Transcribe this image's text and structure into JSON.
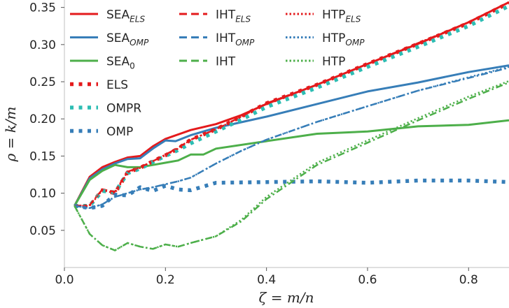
{
  "chart_data": {
    "type": "line",
    "xlabel": "ζ = m/n",
    "ylabel": "ρ = k/m",
    "xlim": [
      0.0,
      0.88
    ],
    "ylim": [
      0.0,
      0.36
    ],
    "x_ticks": [
      0.0,
      0.2,
      0.4,
      0.6,
      0.8
    ],
    "x_tick_labels": [
      "0.0",
      "0.2",
      "0.4",
      "0.6",
      "0.8"
    ],
    "y_ticks": [
      0.05,
      0.1,
      0.15,
      0.2,
      0.25,
      0.3,
      0.35
    ],
    "y_tick_labels": [
      "0.05",
      "0.10",
      "0.15",
      "0.20",
      "0.25",
      "0.30",
      "0.35"
    ],
    "grid": false,
    "legend_position": "top-left",
    "series": [
      {
        "name": "SEA",
        "sub": "ELS",
        "color": "#e41a1c",
        "style": "solid",
        "x": [
          0.02,
          0.05,
          0.075,
          0.1,
          0.125,
          0.15,
          0.175,
          0.2,
          0.25,
          0.3,
          0.35,
          0.4,
          0.5,
          0.6,
          0.7,
          0.8,
          0.88
        ],
        "y": [
          0.083,
          0.122,
          0.135,
          0.142,
          0.148,
          0.15,
          0.163,
          0.173,
          0.185,
          0.193,
          0.205,
          0.22,
          0.246,
          0.274,
          0.301,
          0.33,
          0.357
        ]
      },
      {
        "name": "SEA",
        "sub": "OMP",
        "color": "#377eb8",
        "style": "solid",
        "x": [
          0.02,
          0.05,
          0.075,
          0.1,
          0.125,
          0.15,
          0.175,
          0.2,
          0.22,
          0.25,
          0.3,
          0.4,
          0.5,
          0.6,
          0.7,
          0.8,
          0.88
        ],
        "y": [
          0.083,
          0.12,
          0.132,
          0.14,
          0.146,
          0.147,
          0.16,
          0.171,
          0.17,
          0.178,
          0.188,
          0.203,
          0.22,
          0.237,
          0.249,
          0.263,
          0.272
        ]
      },
      {
        "name": "SEA",
        "sub": "0",
        "color": "#4daf4a",
        "style": "solid",
        "x": [
          0.02,
          0.05,
          0.075,
          0.1,
          0.125,
          0.15,
          0.175,
          0.2,
          0.225,
          0.25,
          0.275,
          0.3,
          0.4,
          0.5,
          0.6,
          0.7,
          0.8,
          0.88
        ],
        "y": [
          0.083,
          0.118,
          0.13,
          0.138,
          0.135,
          0.135,
          0.138,
          0.141,
          0.144,
          0.152,
          0.152,
          0.16,
          0.17,
          0.18,
          0.183,
          0.19,
          0.192,
          0.198
        ]
      },
      {
        "name": "ELS",
        "sub": "",
        "color": "#e41a1c",
        "style": "dotted-thick",
        "x": [
          0.02,
          0.05,
          0.075,
          0.1,
          0.125,
          0.15,
          0.175,
          0.2,
          0.225,
          0.25,
          0.3,
          0.35,
          0.4,
          0.5,
          0.6,
          0.7,
          0.8,
          0.88
        ],
        "y": [
          0.083,
          0.083,
          0.104,
          0.1,
          0.128,
          0.134,
          0.143,
          0.151,
          0.16,
          0.172,
          0.186,
          0.203,
          0.221,
          0.246,
          0.274,
          0.301,
          0.329,
          0.356
        ]
      },
      {
        "name": "OMPR",
        "sub": "",
        "color": "#2dbdb3",
        "style": "dotted-thick",
        "x": [
          0.02,
          0.05,
          0.075,
          0.1,
          0.125,
          0.15,
          0.175,
          0.2,
          0.225,
          0.25,
          0.3,
          0.35,
          0.4,
          0.5,
          0.6,
          0.7,
          0.8,
          0.88
        ],
        "y": [
          0.083,
          0.083,
          0.103,
          0.101,
          0.127,
          0.133,
          0.142,
          0.15,
          0.158,
          0.167,
          0.183,
          0.199,
          0.216,
          0.242,
          0.27,
          0.297,
          0.325,
          0.352
        ]
      },
      {
        "name": "OMP",
        "sub": "",
        "color": "#377eb8",
        "style": "dotted-thick",
        "x": [
          0.02,
          0.05,
          0.075,
          0.1,
          0.125,
          0.15,
          0.175,
          0.2,
          0.225,
          0.25,
          0.3,
          0.4,
          0.5,
          0.6,
          0.7,
          0.8,
          0.88
        ],
        "y": [
          0.083,
          0.08,
          0.083,
          0.098,
          0.097,
          0.108,
          0.103,
          0.11,
          0.105,
          0.104,
          0.114,
          0.115,
          0.116,
          0.114,
          0.117,
          0.117,
          0.115
        ]
      },
      {
        "name": "IHT",
        "sub": "ELS",
        "color": "#e41a1c",
        "style": "dashdot",
        "x": [
          0.02,
          0.05,
          0.075,
          0.1,
          0.125,
          0.15,
          0.175,
          0.2,
          0.225,
          0.25,
          0.3,
          0.35,
          0.4,
          0.5,
          0.6,
          0.7,
          0.8,
          0.88
        ],
        "y": [
          0.083,
          0.084,
          0.105,
          0.102,
          0.129,
          0.135,
          0.143,
          0.152,
          0.161,
          0.172,
          0.186,
          0.203,
          0.221,
          0.246,
          0.274,
          0.302,
          0.33,
          0.357
        ]
      },
      {
        "name": "IHT",
        "sub": "OMP",
        "color": "#377eb8",
        "style": "dashdot",
        "x": [
          0.02,
          0.05,
          0.075,
          0.1,
          0.125,
          0.15,
          0.175,
          0.2,
          0.225,
          0.25,
          0.3,
          0.35,
          0.4,
          0.5,
          0.6,
          0.7,
          0.8,
          0.88
        ],
        "y": [
          0.083,
          0.08,
          0.085,
          0.095,
          0.1,
          0.105,
          0.108,
          0.112,
          0.116,
          0.121,
          0.14,
          0.157,
          0.172,
          0.196,
          0.217,
          0.238,
          0.255,
          0.269
        ]
      },
      {
        "name": "IHT",
        "sub": "",
        "color": "#4daf4a",
        "style": "dashdot",
        "x": [
          0.02,
          0.05,
          0.075,
          0.1,
          0.125,
          0.15,
          0.175,
          0.2,
          0.225,
          0.25,
          0.3,
          0.35,
          0.4,
          0.5,
          0.6,
          0.7,
          0.8,
          0.88
        ],
        "y": [
          0.083,
          0.045,
          0.03,
          0.023,
          0.033,
          0.028,
          0.025,
          0.031,
          0.028,
          0.033,
          0.042,
          0.062,
          0.092,
          0.138,
          0.168,
          0.198,
          0.227,
          0.249
        ]
      },
      {
        "name": "HTP",
        "sub": "ELS",
        "color": "#e41a1c",
        "style": "dotted",
        "x": [
          0.02,
          0.05,
          0.075,
          0.1,
          0.125,
          0.15,
          0.175,
          0.2,
          0.225,
          0.25,
          0.3,
          0.35,
          0.4,
          0.5,
          0.6,
          0.7,
          0.8,
          0.88
        ],
        "y": [
          0.083,
          0.083,
          0.104,
          0.1,
          0.128,
          0.134,
          0.143,
          0.151,
          0.16,
          0.172,
          0.186,
          0.203,
          0.221,
          0.246,
          0.274,
          0.301,
          0.33,
          0.357
        ]
      },
      {
        "name": "HTP",
        "sub": "OMP",
        "color": "#377eb8",
        "style": "dotted",
        "x": [
          0.02,
          0.05,
          0.075,
          0.1,
          0.125,
          0.15,
          0.175,
          0.2,
          0.225,
          0.25,
          0.3,
          0.35,
          0.4,
          0.5,
          0.6,
          0.7,
          0.8,
          0.88
        ],
        "y": [
          0.083,
          0.08,
          0.085,
          0.095,
          0.1,
          0.105,
          0.108,
          0.112,
          0.116,
          0.121,
          0.14,
          0.157,
          0.172,
          0.196,
          0.217,
          0.238,
          0.256,
          0.27
        ]
      },
      {
        "name": "HTP",
        "sub": "",
        "color": "#4daf4a",
        "style": "dotted",
        "x": [
          0.02,
          0.05,
          0.075,
          0.1,
          0.125,
          0.15,
          0.175,
          0.2,
          0.225,
          0.25,
          0.3,
          0.35,
          0.4,
          0.5,
          0.6,
          0.7,
          0.8,
          0.88
        ],
        "y": [
          0.083,
          0.045,
          0.03,
          0.023,
          0.033,
          0.028,
          0.025,
          0.031,
          0.028,
          0.033,
          0.042,
          0.064,
          0.095,
          0.141,
          0.171,
          0.201,
          0.23,
          0.251
        ]
      }
    ]
  },
  "legend": {
    "columns": [
      [
        "SEA|ELS",
        "SEA|OMP",
        "SEA|0",
        "ELS",
        "OMPR",
        "OMP"
      ],
      [
        "IHT|ELS",
        "IHT|OMP",
        "IHT"
      ],
      [
        "HTP|ELS",
        "HTP|OMP",
        "HTP"
      ]
    ]
  }
}
